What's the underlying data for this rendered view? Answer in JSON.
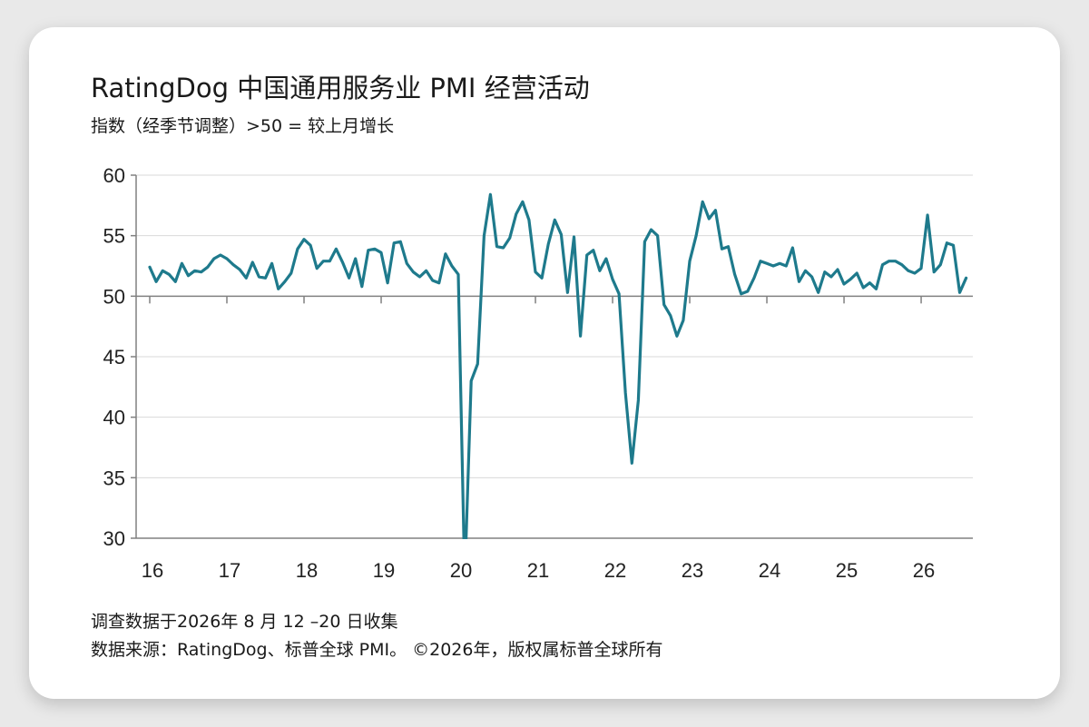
{
  "title": "RatingDog 中国通用服务业 PMI 经营活动",
  "subtitle": "指数（经季节调整）>50 = 较上月增长",
  "footer": {
    "line1": "调查数据于2026年 8 月 12 –20 日收集",
    "line2": "数据来源：RatingDog、标普全球 PMI。 ©2026年，版权属标普全球所有"
  },
  "colors": {
    "line": "#1e7a8c",
    "axis": "#808080",
    "grid": "#d9d9d9"
  },
  "chart_data": {
    "type": "line",
    "title": "RatingDog 中国通用服务业 PMI 经营活动",
    "subtitle": "指数（经季节调整）>50 = 较上月增长",
    "xlabel": "",
    "ylabel": "",
    "ylim": [
      30,
      60
    ],
    "yticks": [
      30,
      35,
      40,
      45,
      50,
      55,
      60
    ],
    "xlim": [
      2016.0,
      2026.67
    ],
    "xticks": [
      {
        "value": 2016,
        "label": "16"
      },
      {
        "value": 2017,
        "label": "17"
      },
      {
        "value": 2018,
        "label": "18"
      },
      {
        "value": 2019,
        "label": "19"
      },
      {
        "value": 2020,
        "label": "20"
      },
      {
        "value": 2021,
        "label": "21"
      },
      {
        "value": 2022,
        "label": "22"
      },
      {
        "value": 2023,
        "label": "23"
      },
      {
        "value": 2024,
        "label": "24"
      },
      {
        "value": 2025,
        "label": "25"
      },
      {
        "value": 2026,
        "label": "26"
      }
    ],
    "reference_line": 50,
    "grid": "horizontal",
    "series": [
      {
        "x_start": "2016-01",
        "frequency": "monthly",
        "values": [
          52.4,
          51.2,
          52.1,
          51.8,
          51.2,
          52.7,
          51.7,
          52.1,
          52.0,
          52.4,
          53.1,
          53.4,
          53.1,
          52.6,
          52.2,
          51.5,
          52.8,
          51.6,
          51.5,
          52.7,
          50.6,
          51.2,
          51.9,
          53.9,
          54.7,
          54.2,
          52.3,
          52.9,
          52.9,
          53.9,
          52.8,
          51.5,
          53.1,
          50.8,
          53.8,
          53.9,
          53.6,
          51.1,
          54.4,
          54.5,
          52.7,
          52.0,
          51.6,
          52.1,
          51.3,
          51.1,
          53.5,
          52.5,
          51.8,
          26.5,
          43.0,
          44.4,
          55.0,
          58.4,
          54.1,
          54.0,
          54.8,
          56.8,
          57.8,
          56.3,
          52.0,
          51.5,
          54.3,
          56.3,
          55.1,
          50.3,
          54.9,
          46.7,
          53.4,
          53.8,
          52.1,
          53.1,
          51.4,
          50.2,
          42.0,
          36.2,
          41.4,
          54.5,
          55.5,
          55.0,
          49.3,
          48.4,
          46.7,
          48.0,
          52.9,
          55.0,
          57.8,
          56.4,
          57.1,
          53.9,
          54.1,
          51.8,
          50.2,
          50.4,
          51.5,
          52.9,
          52.7,
          52.5,
          52.7,
          52.5,
          54.0,
          51.2,
          52.1,
          51.6,
          50.3,
          52.0,
          51.6,
          52.2,
          51.0,
          51.4,
          51.9,
          50.7,
          51.1,
          50.6,
          52.6,
          52.9,
          52.9,
          52.6,
          52.1,
          51.9,
          52.3,
          56.7,
          52.0,
          52.6,
          54.4,
          54.2,
          50.3,
          51.5
        ]
      }
    ]
  }
}
